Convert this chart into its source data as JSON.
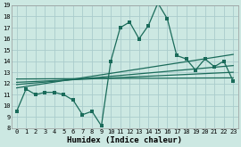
{
  "x": [
    0,
    1,
    2,
    3,
    4,
    5,
    6,
    7,
    8,
    9,
    10,
    11,
    12,
    13,
    14,
    15,
    16,
    17,
    18,
    19,
    20,
    21,
    22,
    23
  ],
  "y_main": [
    9.5,
    11.5,
    11.0,
    11.2,
    11.2,
    11.0,
    10.5,
    9.2,
    9.5,
    8.2,
    14.0,
    17.0,
    17.5,
    16.0,
    17.2,
    19.2,
    17.8,
    14.5,
    14.2,
    13.2,
    14.2,
    13.5,
    14.0,
    12.2
  ],
  "line_color": "#1a6b5a",
  "bg_color": "#cce8e2",
  "grid_color": "#aacccc",
  "ylim": [
    8,
    19
  ],
  "xlim_min": -0.5,
  "xlim_max": 23.5,
  "yticks": [
    8,
    9,
    10,
    11,
    12,
    13,
    14,
    15,
    16,
    17,
    18,
    19
  ],
  "xticks": [
    0,
    1,
    2,
    3,
    4,
    5,
    6,
    7,
    8,
    9,
    10,
    11,
    12,
    13,
    14,
    15,
    16,
    17,
    18,
    19,
    20,
    21,
    22,
    23
  ],
  "xlabel": "Humidex (Indice chaleur)",
  "trend_lines": [
    {
      "x0": 0,
      "y0": 11.6,
      "x1": 23,
      "y1": 14.6
    },
    {
      "x0": 0,
      "y0": 11.9,
      "x1": 23,
      "y1": 13.6
    },
    {
      "x0": 0,
      "y0": 12.1,
      "x1": 23,
      "y1": 13.0
    },
    {
      "x0": 0,
      "y0": 12.4,
      "x1": 23,
      "y1": 12.5
    }
  ],
  "marker_size": 2.5,
  "line_width": 0.9,
  "tick_fontsize": 5.0,
  "xlabel_fontsize": 6.5
}
